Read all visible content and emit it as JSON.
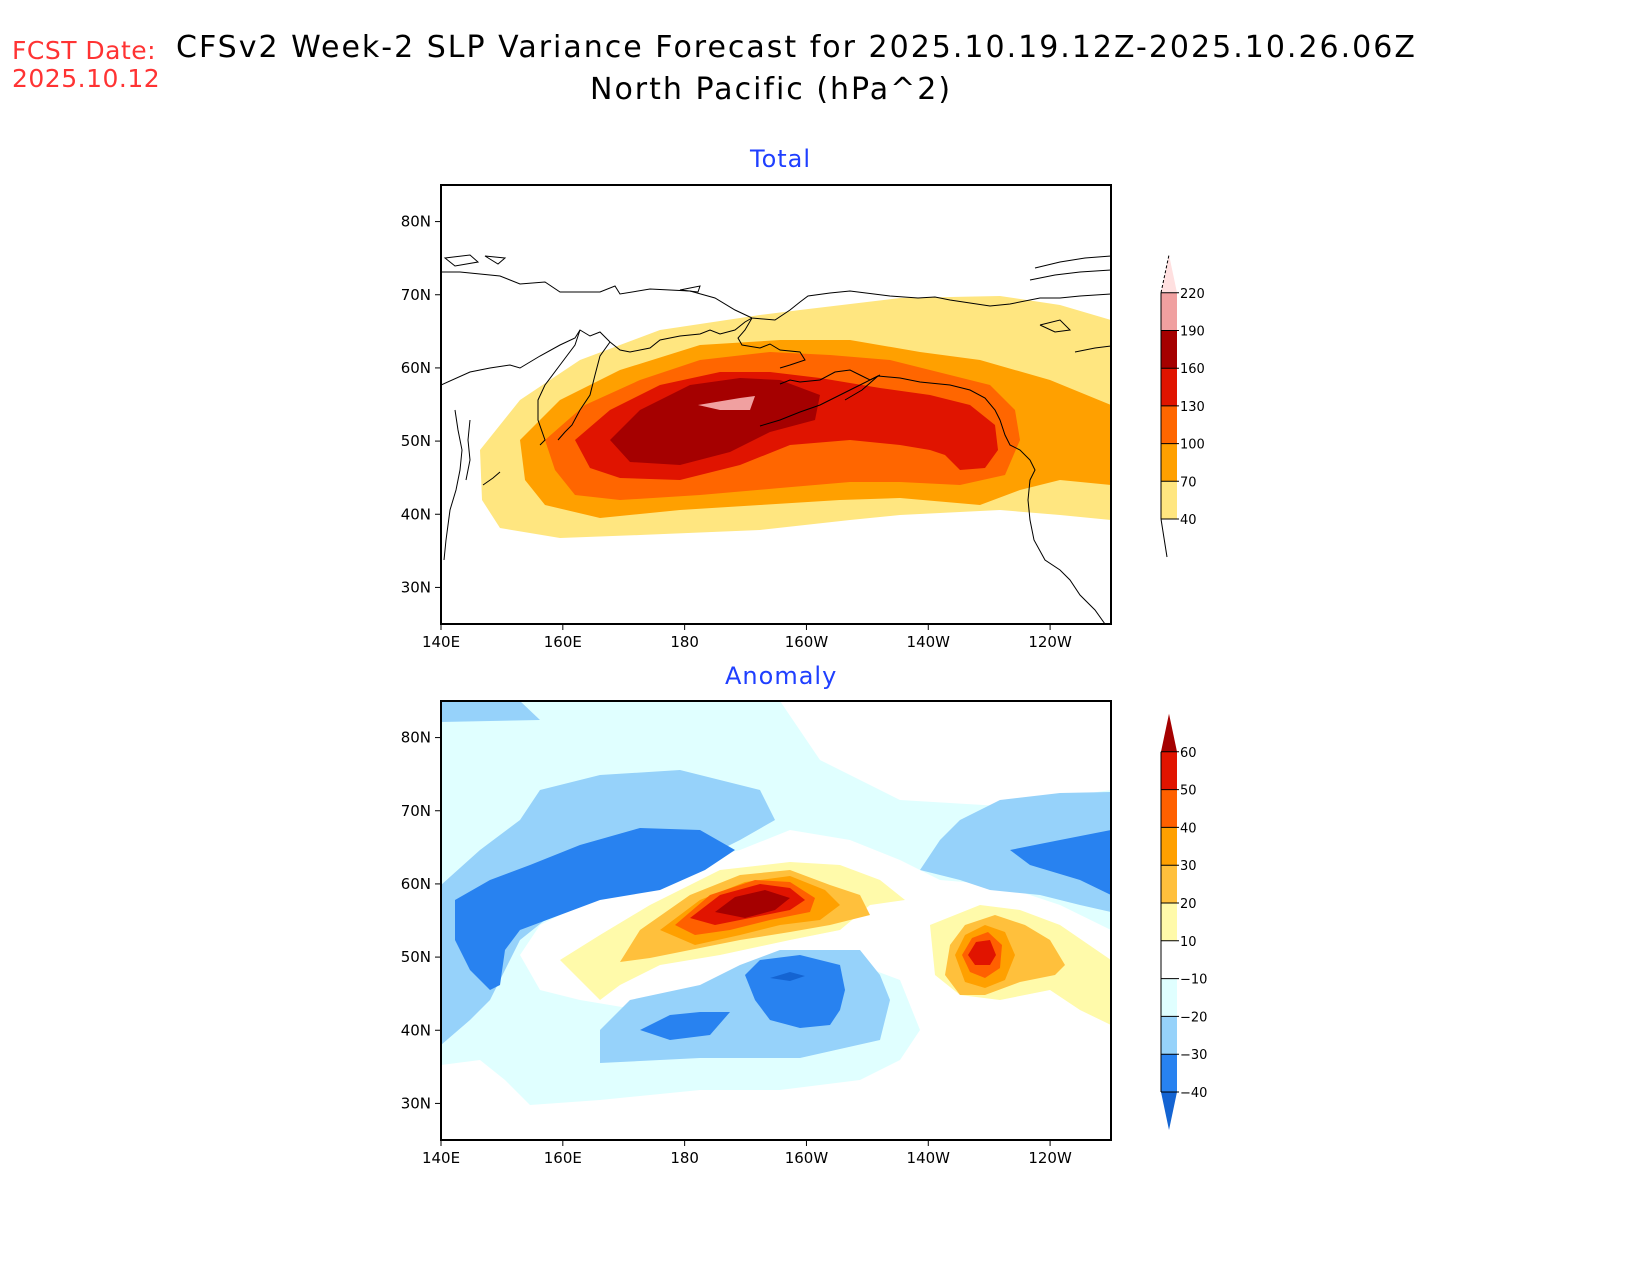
{
  "header": {
    "fcst_date_label": "FCST Date:",
    "fcst_date_value": "2025.10.12",
    "title_line1": "CFSv2 Week-2 SLP Variance Forecast for 2025.10.19.12Z-2025.10.26.06Z",
    "title_line2": "North Pacific (hPa^2)"
  },
  "chart_data": [
    {
      "type": "heatmap",
      "title": "Total",
      "variable": "SLP variance",
      "units": "hPa^2",
      "region": "North Pacific",
      "x_axis": {
        "range": [
          "140E",
          "110W"
        ],
        "ticks": [
          "140E",
          "160E",
          "180",
          "160W",
          "140W",
          "120W"
        ]
      },
      "y_axis": {
        "range": [
          "25N",
          "85N"
        ],
        "ticks": [
          "30N",
          "40N",
          "50N",
          "60N",
          "70N",
          "80N"
        ]
      },
      "colorbar": {
        "levels": [
          40,
          70,
          100,
          130,
          160,
          190,
          220
        ],
        "colors": [
          "#ffe680",
          "#ffa000",
          "#ff6600",
          "#e01400",
          "#a50000",
          "#f0a0a0",
          "#ffe0e0"
        ],
        "extend": "both"
      },
      "features": [
        {
          "description": "Main variance maximum",
          "approx_center": "52N 175E",
          "max_level": ">190"
        },
        {
          "description": "Secondary maximum Gulf of Alaska",
          "approx_center": "50N 135W",
          "max_level": "130-160"
        },
        {
          "description": "40 hPa^2 envelope",
          "extent": "36N-68N, 145E-110W"
        }
      ]
    },
    {
      "type": "heatmap",
      "title": "Anomaly",
      "variable": "SLP variance anomaly",
      "units": "hPa^2",
      "region": "North Pacific",
      "x_axis": {
        "range": [
          "140E",
          "110W"
        ],
        "ticks": [
          "140E",
          "160E",
          "180",
          "160W",
          "140W",
          "120W"
        ]
      },
      "y_axis": {
        "range": [
          "25N",
          "85N"
        ],
        "ticks": [
          "30N",
          "40N",
          "50N",
          "60N",
          "70N",
          "80N"
        ]
      },
      "colorbar": {
        "levels": [
          -40,
          -30,
          -20,
          -10,
          10,
          20,
          30,
          40,
          50,
          60
        ],
        "colors": [
          "#1464d2",
          "#2882f0",
          "#96d2fa",
          "#e0ffff",
          "#ffffff",
          "#fffaaa",
          "#ffc03c",
          "#ffa000",
          "#ff6000",
          "#e11400",
          "#a50000"
        ],
        "extend": "both"
      },
      "features": [
        {
          "description": "Positive anomaly maximum Bering Sea / Aleutians",
          "approx_center": "57N 170W",
          "max_level": ">60"
        },
        {
          "description": "Positive anomaly off Pacific Northwest",
          "approx_center": "50N 130W",
          "max_level": "50-60"
        },
        {
          "description": "Negative anomaly band Kamchatka / Okhotsk",
          "approx_center": "58N 160E",
          "max_level": "-30 to -40"
        },
        {
          "description": "Negative anomaly central North Pacific",
          "approx_center": "45N 165W",
          "max_level": "< -40"
        },
        {
          "description": "Negative anomaly Canadian Arctic",
          "approx_center": "65N 115W",
          "max_level": "-30 to -40"
        }
      ]
    }
  ]
}
